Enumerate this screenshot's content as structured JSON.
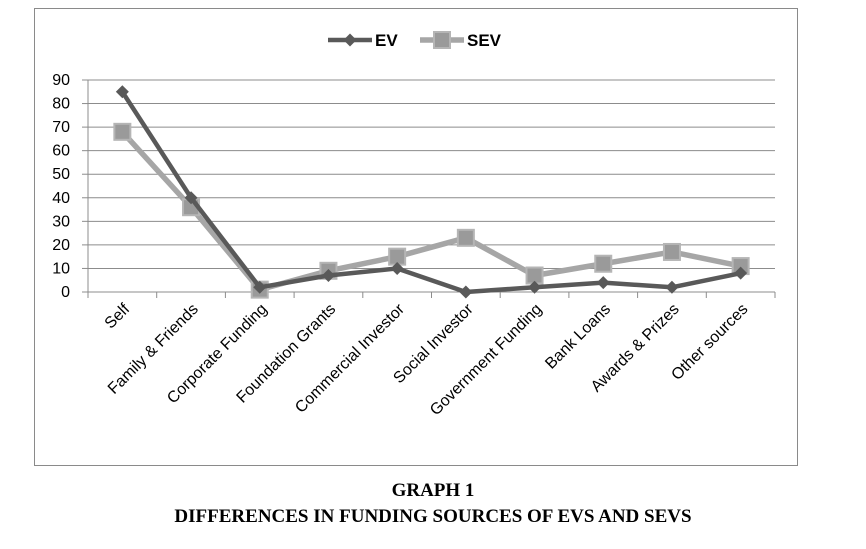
{
  "chart_data": {
    "type": "line",
    "categories": [
      "Self",
      "Family & Friends",
      "Corporate Funding",
      "Foundation Grants",
      "Commercial Investor",
      "Social Investor",
      "Government Funding",
      "Bank Loans",
      "Awards & Prizes",
      "Other sources"
    ],
    "series": [
      {
        "name": "EV",
        "values": [
          85,
          40,
          2,
          7,
          10,
          0,
          2,
          4,
          2,
          8
        ],
        "color": "#595959",
        "marker": "diamond"
      },
      {
        "name": "SEV",
        "values": [
          68,
          36,
          1,
          9,
          15,
          23,
          7,
          12,
          17,
          11
        ],
        "color": "#a6a6a6",
        "marker": "square"
      }
    ],
    "ylim": [
      0,
      90
    ],
    "yticks": [
      0,
      10,
      20,
      30,
      40,
      50,
      60,
      70,
      80,
      90
    ],
    "grid": true,
    "legend_position": "top-center"
  },
  "caption": {
    "title": "GRAPH 1",
    "subtitle": "DIFFERENCES IN FUNDING SOURCES OF EVS AND SEVS"
  }
}
